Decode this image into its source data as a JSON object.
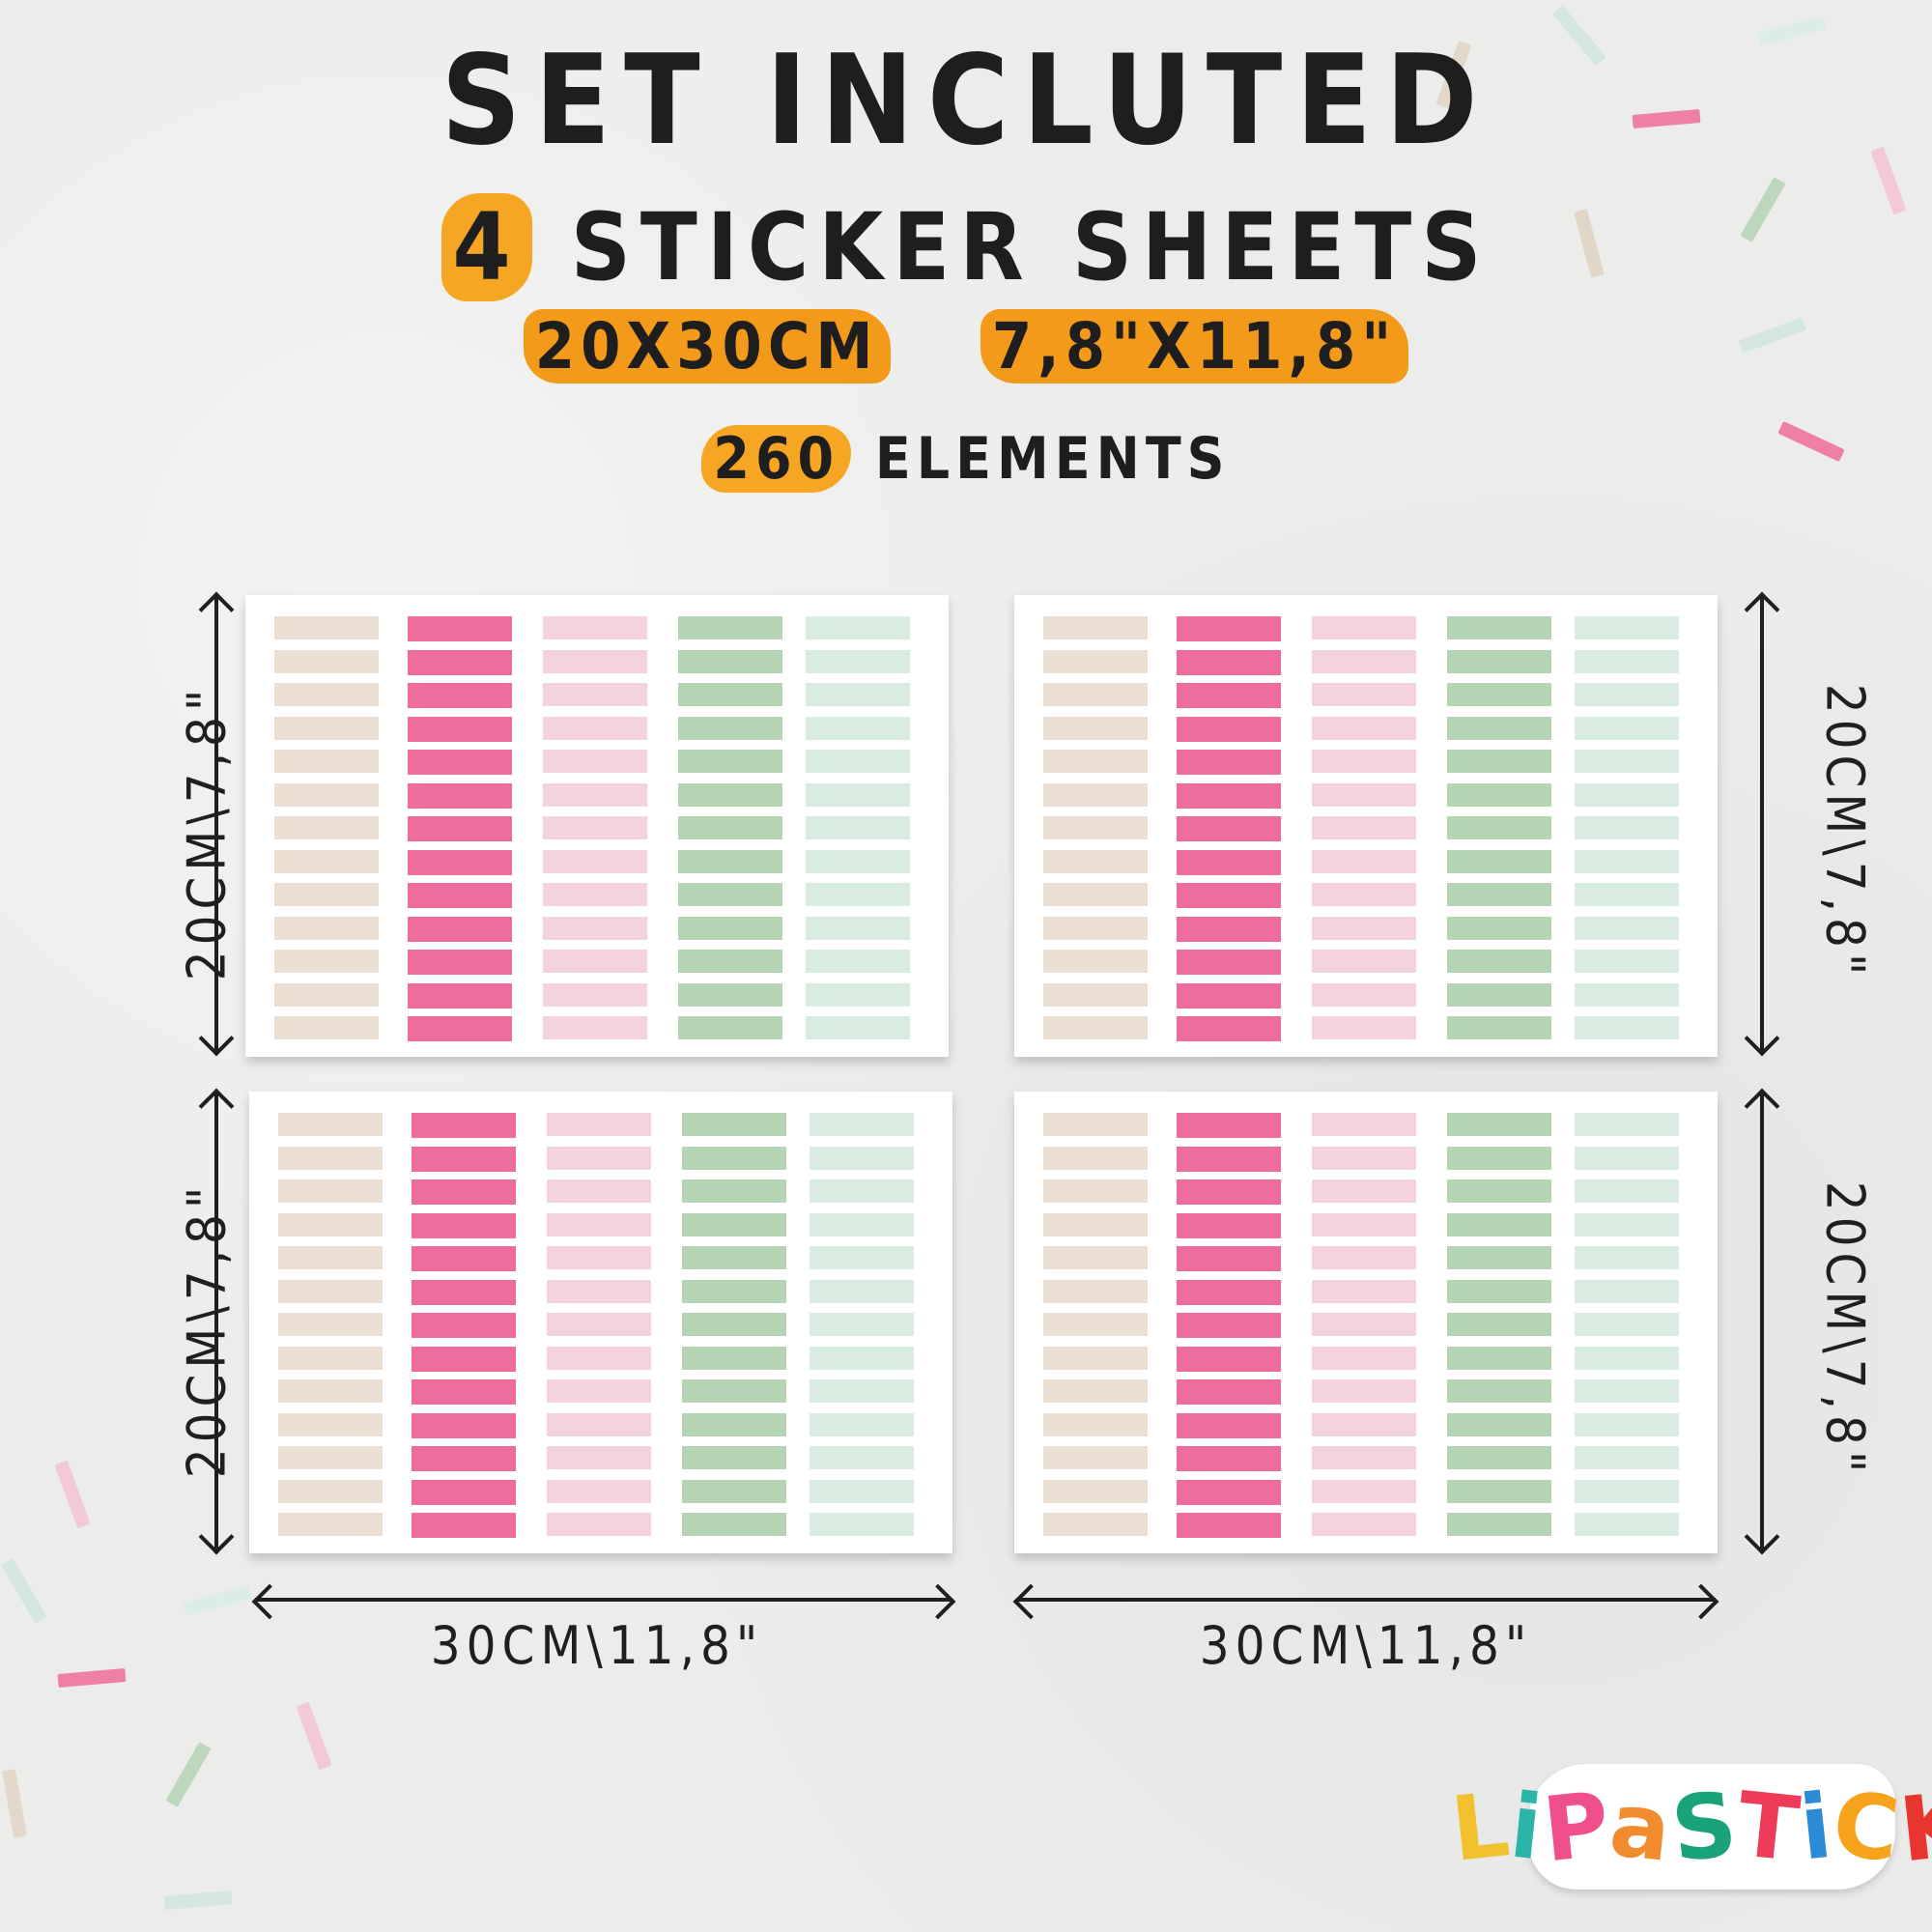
{
  "header": {
    "title": "SET INCLUTED",
    "count": "4",
    "sheets_label": "STICKER SHEETS",
    "size_cm": "20X30CM",
    "size_in": "7,8\"X11,8\"",
    "elements_count": "260",
    "elements_label": "ELEMENTS"
  },
  "dimensions": {
    "height_label": "20CM\\7,8\"",
    "width_label": "30CM\\11,8\""
  },
  "sheet": {
    "columns": [
      {
        "color": "#eadfd2",
        "count": 13
      },
      {
        "color": "#ee6d9c",
        "count": 13
      },
      {
        "color": "#f5d2df",
        "count": 13
      },
      {
        "color": "#b5d4b4",
        "count": 13
      },
      {
        "color": "#d9ece2",
        "count": 13
      }
    ]
  },
  "logo": {
    "text": "LiPaSTiCK",
    "letter_colors": [
      "#f2c12e",
      "#2bb5a8",
      "#ef4f8b",
      "#f28b2e",
      "#1aa37a",
      "#ef3b5a",
      "#2c8bd6",
      "#f7a21b",
      "#e8352f"
    ]
  },
  "colors": {
    "highlight": "#f6a623",
    "background": "#ececeb",
    "ink": "#1f1f1f"
  }
}
